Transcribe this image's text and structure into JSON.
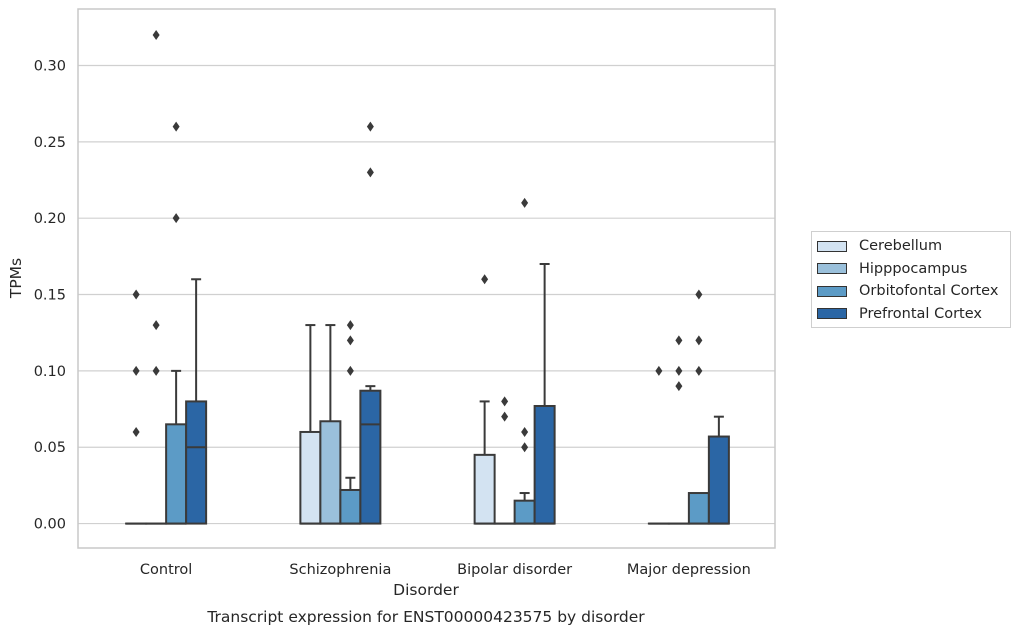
{
  "chart_data": {
    "type": "bar",
    "subtype": "boxplot",
    "caption": "Transcript expression for ENST00000423575 by disorder",
    "xlabel": "Disorder",
    "ylabel": "TPMs",
    "ylim": [
      -0.016,
      0.337
    ],
    "yticks": [
      "0.00",
      "0.05",
      "0.10",
      "0.15",
      "0.20",
      "0.25",
      "0.30"
    ],
    "grid": "horizontal",
    "legend_position": "right",
    "categories": [
      "Control",
      "Schizophrenia",
      "Bipolar disorder",
      "Major depression"
    ],
    "series": [
      {
        "name": "Cerebellum",
        "color": "#d3e3f2",
        "boxes": [
          {
            "q1": 0,
            "median": 0,
            "q3": 0,
            "whisker_low": 0,
            "whisker_high": 0,
            "outliers": [
              0.06,
              0.1,
              0.15
            ]
          },
          {
            "q1": 0,
            "median": 0,
            "q3": 0.06,
            "whisker_low": 0,
            "whisker_high": 0.13,
            "outliers": []
          },
          {
            "q1": 0,
            "median": 0,
            "q3": 0.045,
            "whisker_low": 0,
            "whisker_high": 0.08,
            "outliers": [
              0.16
            ]
          },
          {
            "q1": 0,
            "median": 0,
            "q3": 0,
            "whisker_low": 0,
            "whisker_high": 0,
            "outliers": [
              0.1
            ]
          }
        ]
      },
      {
        "name": "Hipppocampus",
        "color": "#9ac0db",
        "boxes": [
          {
            "q1": 0,
            "median": 0,
            "q3": 0,
            "whisker_low": 0,
            "whisker_high": 0,
            "outliers": [
              0.1,
              0.13,
              0.32
            ]
          },
          {
            "q1": 0,
            "median": 0,
            "q3": 0.067,
            "whisker_low": 0,
            "whisker_high": 0.13,
            "outliers": []
          },
          {
            "q1": 0,
            "median": 0,
            "q3": 0,
            "whisker_low": 0,
            "whisker_high": 0,
            "outliers": [
              0.07,
              0.08
            ]
          },
          {
            "q1": 0,
            "median": 0,
            "q3": 0,
            "whisker_low": 0,
            "whisker_high": 0,
            "outliers": [
              0.09,
              0.1,
              0.12
            ]
          }
        ]
      },
      {
        "name": "Orbitofontal Cortex",
        "color": "#5c9bc6",
        "boxes": [
          {
            "q1": 0,
            "median": 0,
            "q3": 0.065,
            "whisker_low": 0,
            "whisker_high": 0.1,
            "outliers": [
              0.2,
              0.26
            ]
          },
          {
            "q1": 0,
            "median": 0,
            "q3": 0.022,
            "whisker_low": 0,
            "whisker_high": 0.03,
            "outliers": [
              0.1,
              0.12,
              0.13
            ]
          },
          {
            "q1": 0,
            "median": 0,
            "q3": 0.015,
            "whisker_low": 0,
            "whisker_high": 0.02,
            "outliers": [
              0.05,
              0.06,
              0.21
            ]
          },
          {
            "q1": 0,
            "median": 0,
            "q3": 0.02,
            "whisker_low": 0,
            "whisker_high": 0.02,
            "outliers": [
              0.1,
              0.12,
              0.15
            ]
          }
        ]
      },
      {
        "name": "Prefrontal Cortex",
        "color": "#2b66a5",
        "boxes": [
          {
            "q1": 0,
            "median": 0.05,
            "q3": 0.08,
            "whisker_low": 0,
            "whisker_high": 0.16,
            "outliers": []
          },
          {
            "q1": 0,
            "median": 0.065,
            "q3": 0.087,
            "whisker_low": 0,
            "whisker_high": 0.09,
            "outliers": [
              0.23,
              0.26
            ]
          },
          {
            "q1": 0,
            "median": 0,
            "q3": 0.077,
            "whisker_low": 0,
            "whisker_high": 0.17,
            "outliers": []
          },
          {
            "q1": 0,
            "median": 0,
            "q3": 0.057,
            "whisker_low": 0,
            "whisker_high": 0.07,
            "outliers": []
          }
        ]
      }
    ]
  }
}
